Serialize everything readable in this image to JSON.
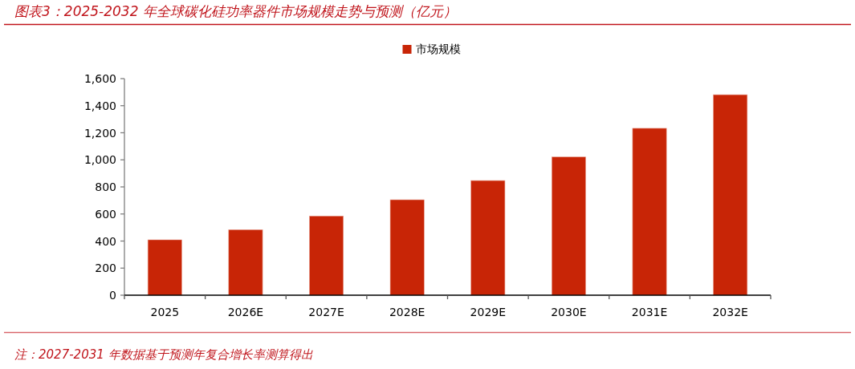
{
  "chart_data": {
    "type": "bar",
    "title": "图表3：2025-2032 年全球碳化硅功率器件市场规模走势与预测（亿元）",
    "categories": [
      "2025",
      "2026E",
      "2027E",
      "2028E",
      "2029E",
      "2030E",
      "2031E",
      "2032E"
    ],
    "series": [
      {
        "name": "市场规模",
        "color": "#c82506",
        "values": [
          409,
          484,
          585,
          705,
          847,
          1021,
          1233,
          1481
        ]
      }
    ],
    "ylim": [
      0,
      1600
    ],
    "yticks": [
      0,
      200,
      400,
      600,
      800,
      {
        "value": 1000,
        "label": "1,000"
      },
      {
        "value": 1200,
        "label": "1,200"
      },
      {
        "value": 1400,
        "label": "1,400"
      },
      {
        "value": 1600,
        "label": "1,600"
      }
    ],
    "legend": "top",
    "annotations": [
      "注：2027-2031 年数据基于预测年复合增长率测算得出"
    ]
  }
}
